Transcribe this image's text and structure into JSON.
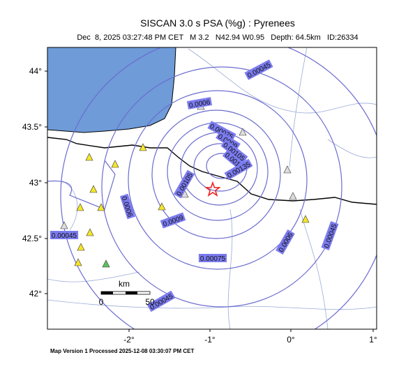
{
  "header": {
    "title": "SISCAN 3.0 s PSA (%g) : Pyrenees",
    "subtitle": "Dec  8, 2025 03:27:48 PM CET   M 3.2   N42.94 W0.95   Depth: 64.5km   ID:26334"
  },
  "map": {
    "lat_labels": [
      "44°",
      "43.5°",
      "43°",
      "42.5°",
      "42°"
    ],
    "lon_labels": [
      "-2°",
      "-1°",
      "0°",
      "1°"
    ],
    "contour_labels": [
      "0.00045",
      "0.0006",
      "0.00075",
      "0.0009",
      "0.00105",
      "0.0012",
      "0.00135",
      "0.00105",
      "0.0009",
      "0.0006",
      "0.00045",
      "0.00075",
      "0.00045",
      "0.0006",
      "0.00045"
    ],
    "scale": {
      "unit": "km",
      "labels": [
        "0",
        "50"
      ]
    }
  },
  "footer": "Map Version 1 Processed 2025-12-08 03:30:07 PM CET"
}
